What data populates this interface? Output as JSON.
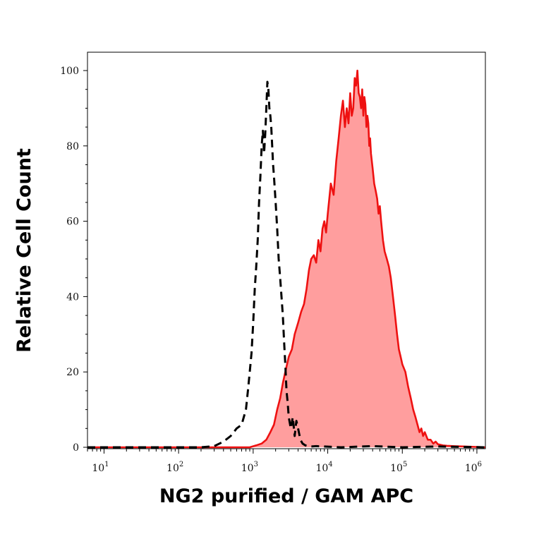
{
  "chart_data": {
    "type": "area",
    "xlabel": "NG2 purified / GAM APC",
    "ylabel": "Relative Cell Count",
    "x_scale": "log",
    "xlim": [
      6,
      1300000
    ],
    "ylim": [
      0,
      105
    ],
    "x_ticks": [
      {
        "value": 10,
        "base": "10",
        "exp": "1"
      },
      {
        "value": 100,
        "base": "10",
        "exp": "2"
      },
      {
        "value": 1000,
        "base": "10",
        "exp": "3"
      },
      {
        "value": 10000,
        "base": "10",
        "exp": "4"
      },
      {
        "value": 100000,
        "base": "10",
        "exp": "5"
      },
      {
        "value": 1000000,
        "base": "10",
        "exp": "6"
      }
    ],
    "y_ticks": [
      "0",
      "20",
      "40",
      "60",
      "80",
      "100"
    ],
    "grid": false,
    "series": [
      {
        "style": "dashed",
        "color": "#000000",
        "fill": false,
        "x": [
          6,
          150,
          200,
          300,
          400,
          500,
          600,
          700,
          800,
          850,
          900,
          950,
          1000,
          1050,
          1100,
          1150,
          1200,
          1250,
          1300,
          1350,
          1400,
          1450,
          1500,
          1550,
          1600,
          1650,
          1700,
          1750,
          1800,
          1850,
          1900,
          2000,
          2100,
          2200,
          2300,
          2400,
          2500,
          2600,
          2700,
          2800,
          2900,
          3000,
          3200,
          3400,
          3600,
          3800,
          4000,
          4300,
          4600,
          5000,
          5500,
          6000,
          7000,
          9000,
          15000,
          40000,
          100000,
          300000,
          1300000
        ],
        "values": [
          0,
          0,
          0,
          0.3,
          1.5,
          3,
          5,
          6,
          10,
          15,
          20,
          25,
          33,
          42,
          48,
          55,
          65,
          72,
          80,
          84,
          78,
          83,
          90,
          97,
          95,
          90,
          88,
          85,
          80,
          75,
          72,
          65,
          58,
          50,
          45,
          40,
          35,
          28,
          22,
          15,
          12,
          8,
          5,
          8,
          3,
          7,
          5,
          2,
          1,
          0.5,
          0.3,
          0.2,
          0.3,
          0.2,
          0,
          0.3,
          0,
          0.2,
          0
        ]
      },
      {
        "style": "solid-filled",
        "color": "#ee1111",
        "fill": "#ff9e9e",
        "x": [
          6,
          900,
          1100,
          1300,
          1500,
          1700,
          1900,
          2100,
          2300,
          2500,
          2700,
          3000,
          3300,
          3600,
          4000,
          4400,
          4800,
          5200,
          5600,
          6000,
          6500,
          7000,
          7500,
          8000,
          8500,
          9000,
          9500,
          10000,
          11000,
          12000,
          13000,
          14000,
          15000,
          16000,
          17000,
          18000,
          19000,
          20000,
          21000,
          22000,
          23000,
          24000,
          25000,
          26000,
          27000,
          28000,
          29000,
          30000,
          31000,
          32000,
          33000,
          34000,
          35000,
          36000,
          37000,
          38000,
          40000,
          42000,
          44000,
          46000,
          48000,
          50000,
          52000,
          55000,
          58000,
          62000,
          66000,
          70000,
          75000,
          80000,
          85000,
          90000,
          95000,
          100000,
          110000,
          120000,
          130000,
          140000,
          150000,
          160000,
          170000,
          180000,
          190000,
          200000,
          220000,
          240000,
          260000,
          280000,
          300000,
          350000,
          400000,
          500000,
          700000,
          1300000
        ],
        "values": [
          0,
          0,
          0.5,
          1,
          2,
          4,
          6,
          10,
          13,
          17,
          20,
          24,
          26,
          30,
          33,
          36,
          38,
          42,
          47,
          50,
          51,
          49,
          55,
          52,
          58,
          60,
          57,
          62,
          70,
          67,
          76,
          82,
          88,
          92,
          85,
          90,
          86,
          94,
          88,
          90,
          98,
          96,
          100,
          94,
          93,
          90,
          95,
          88,
          93,
          91,
          85,
          88,
          86,
          80,
          82,
          78,
          74,
          70,
          68,
          66,
          62,
          64,
          60,
          55,
          52,
          50,
          48,
          45,
          40,
          35,
          30,
          26,
          24,
          22,
          20,
          16,
          13,
          10,
          8,
          6,
          4,
          5,
          3,
          4,
          2,
          2,
          1,
          1.5,
          0.8,
          0.5,
          0.4,
          0.3,
          0.2,
          0
        ]
      }
    ]
  }
}
